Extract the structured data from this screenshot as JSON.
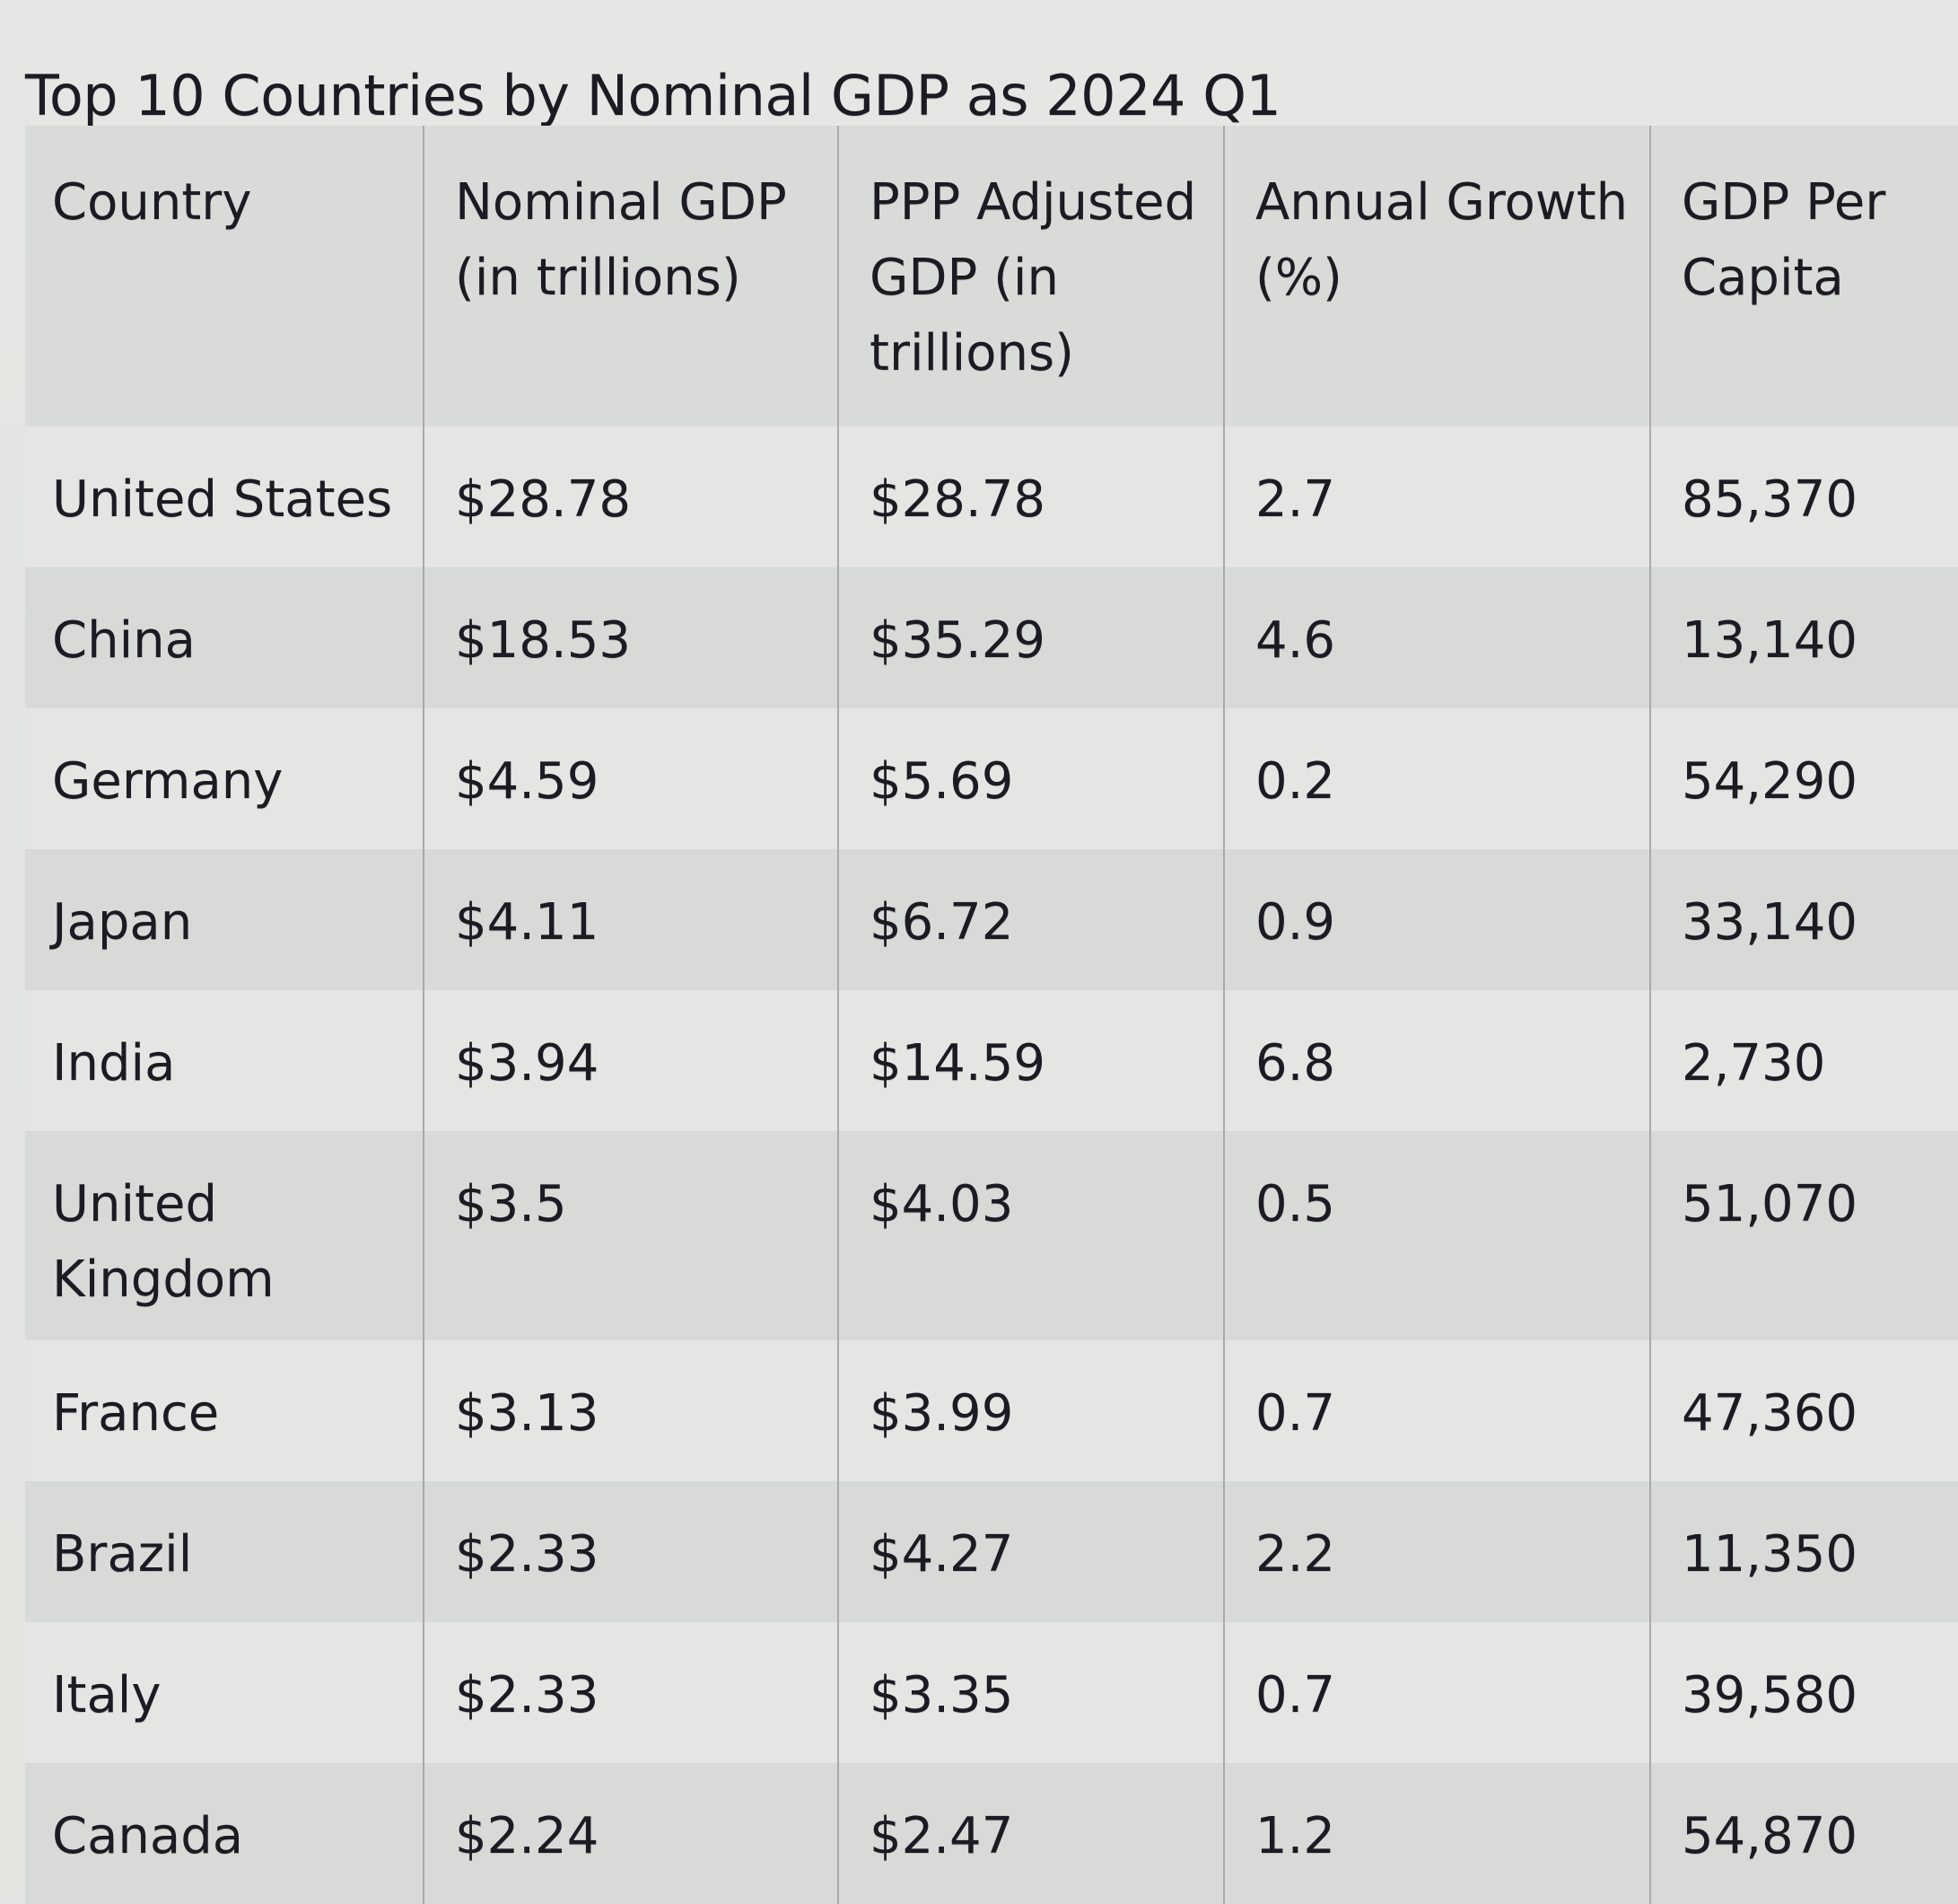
{
  "title": "Top 10 Countries by Nominal GDP as 2024 Q1",
  "table": {
    "headers": [
      "Country",
      "Nominal GDP (in trillions)",
      "PPP Adjusted GDP (in trillions)",
      "Annual Growth (%)",
      "GDP Per Capita"
    ],
    "rows": [
      {
        "country": "United States",
        "nominal_gdp": "$28.78",
        "ppp_gdp": "$28.78",
        "annual_growth": "2.7",
        "gdp_per_capita": "85,370"
      },
      {
        "country": "China",
        "nominal_gdp": "$18.53",
        "ppp_gdp": "$35.29",
        "annual_growth": "4.6",
        "gdp_per_capita": "13,140"
      },
      {
        "country": "Germany",
        "nominal_gdp": "$4.59",
        "ppp_gdp": "$5.69",
        "annual_growth": "0.2",
        "gdp_per_capita": "54,290"
      },
      {
        "country": "Japan",
        "nominal_gdp": "$4.11",
        "ppp_gdp": "$6.72",
        "annual_growth": "0.9",
        "gdp_per_capita": "33,140"
      },
      {
        "country": "India",
        "nominal_gdp": "$3.94",
        "ppp_gdp": "$14.59",
        "annual_growth": "6.8",
        "gdp_per_capita": "2,730"
      },
      {
        "country": "United Kingdom",
        "nominal_gdp": "$3.5",
        "ppp_gdp": "$4.03",
        "annual_growth": "0.5",
        "gdp_per_capita": "51,070"
      },
      {
        "country": "France",
        "nominal_gdp": "$3.13",
        "ppp_gdp": "$3.99",
        "annual_growth": "0.7",
        "gdp_per_capita": "47,360"
      },
      {
        "country": "Brazil",
        "nominal_gdp": "$2.33",
        "ppp_gdp": "$4.27",
        "annual_growth": "2.2",
        "gdp_per_capita": "11,350"
      },
      {
        "country": "Italy",
        "nominal_gdp": "$2.33",
        "ppp_gdp": "$3.35",
        "annual_growth": "0.7",
        "gdp_per_capita": "39,580"
      },
      {
        "country": "Canada",
        "nominal_gdp": "$2.24",
        "ppp_gdp": "$2.47",
        "annual_growth": "1.2",
        "gdp_per_capita": "54,870"
      }
    ]
  },
  "chart_data": {
    "type": "table",
    "title": "Top 10 Countries by Nominal GDP as 2024 Q1",
    "columns": [
      "Country",
      "Nominal GDP (in trillions)",
      "PPP Adjusted GDP (in trillions)",
      "Annual Growth (%)",
      "GDP Per Capita"
    ],
    "categories": [
      "United States",
      "China",
      "Germany",
      "Japan",
      "India",
      "United Kingdom",
      "France",
      "Brazil",
      "Italy",
      "Canada"
    ],
    "series": [
      {
        "name": "Nominal GDP (in trillions)",
        "unit": "USD trillions",
        "values": [
          28.78,
          18.53,
          4.59,
          4.11,
          3.94,
          3.5,
          3.13,
          2.33,
          2.33,
          2.24
        ]
      },
      {
        "name": "PPP Adjusted GDP (in trillions)",
        "unit": "USD trillions",
        "values": [
          28.78,
          35.29,
          5.69,
          6.72,
          14.59,
          4.03,
          3.99,
          4.27,
          3.35,
          2.47
        ]
      },
      {
        "name": "Annual Growth (%)",
        "unit": "%",
        "values": [
          2.7,
          4.6,
          0.2,
          0.9,
          6.8,
          0.5,
          0.7,
          2.2,
          0.7,
          1.2
        ]
      },
      {
        "name": "GDP Per Capita",
        "unit": "USD",
        "values": [
          85370,
          13140,
          54290,
          33140,
          2730,
          51070,
          47360,
          11350,
          39580,
          54870
        ]
      }
    ]
  }
}
